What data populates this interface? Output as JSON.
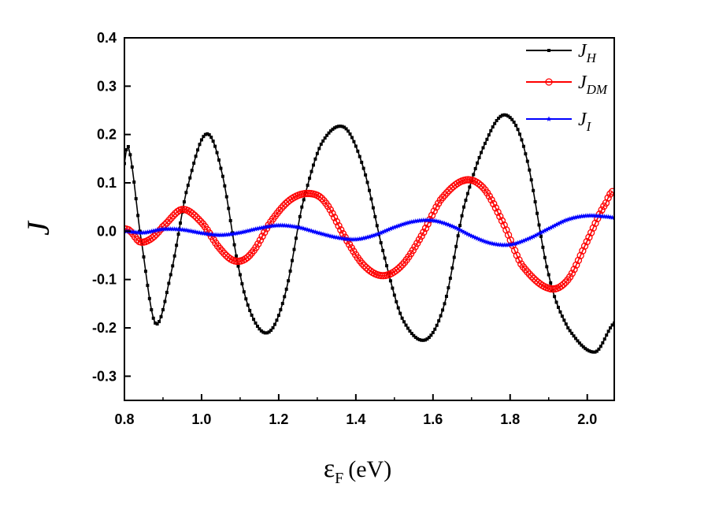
{
  "chart_data": {
    "type": "line",
    "title": "",
    "xlabel": {
      "main": "ε",
      "sub": "F",
      "unit": "(eV)"
    },
    "ylabel": "J",
    "xlim": [
      0.8,
      2.07
    ],
    "ylim": [
      -0.35,
      0.4
    ],
    "x_ticks": [
      0.8,
      1.0,
      1.2,
      1.4,
      1.6,
      1.8,
      2.0
    ],
    "x_tick_labels": [
      "0.8",
      "1.0",
      "1.2",
      "1.4",
      "1.6",
      "1.8",
      "2.0"
    ],
    "y_ticks": [
      -0.3,
      -0.2,
      -0.1,
      0.0,
      0.1,
      0.2,
      0.3,
      0.4
    ],
    "y_tick_labels": [
      "-0.3",
      "-0.2",
      "-0.1",
      "0.0",
      "0.1",
      "0.2",
      "0.3",
      "0.4"
    ],
    "grid": false,
    "legend_position": "top-right",
    "series": [
      {
        "name": "J_H",
        "legend": {
          "base": "J",
          "sub": "H"
        },
        "color": "#000000",
        "marker": "square",
        "x": [
          0.8,
          0.81,
          0.84,
          0.88,
          0.92,
          0.96,
          1.01,
          1.05,
          1.1,
          1.14,
          1.18,
          1.22,
          1.26,
          1.31,
          1.37,
          1.42,
          1.47,
          1.52,
          1.58,
          1.63,
          1.68,
          1.74,
          1.79,
          1.84,
          1.9,
          1.95,
          2.02,
          2.07
        ],
        "values": [
          0.14,
          0.175,
          0.0,
          -0.19,
          -0.09,
          0.08,
          0.2,
          0.13,
          -0.09,
          -0.19,
          -0.205,
          -0.12,
          0.05,
          0.18,
          0.215,
          0.13,
          -0.04,
          -0.18,
          -0.225,
          -0.15,
          0.05,
          0.19,
          0.24,
          0.16,
          -0.09,
          -0.2,
          -0.25,
          -0.19
        ]
      },
      {
        "name": "J_DM",
        "legend": {
          "base": "J",
          "sub": "DM"
        },
        "color": "#ff0000",
        "marker": "circle",
        "x": [
          0.8,
          0.815,
          0.84,
          0.87,
          0.9,
          0.95,
          1.0,
          1.05,
          1.09,
          1.13,
          1.18,
          1.23,
          1.28,
          1.32,
          1.37,
          1.42,
          1.47,
          1.52,
          1.57,
          1.62,
          1.68,
          1.73,
          1.78,
          1.83,
          1.9,
          1.95,
          2.0,
          2.05,
          2.07
        ],
        "values": [
          0.005,
          0.0,
          -0.022,
          -0.015,
          0.01,
          0.045,
          0.018,
          -0.038,
          -0.062,
          -0.045,
          0.02,
          0.065,
          0.078,
          0.06,
          -0.01,
          -0.07,
          -0.092,
          -0.07,
          -0.01,
          0.065,
          0.105,
          0.09,
          0.02,
          -0.07,
          -0.118,
          -0.1,
          -0.02,
          0.06,
          0.085
        ]
      },
      {
        "name": "J_I",
        "legend": {
          "base": "J",
          "sub": "I"
        },
        "color": "#0000ff",
        "marker": "star",
        "x": [
          0.8,
          0.85,
          0.9,
          0.95,
          1.0,
          1.05,
          1.1,
          1.15,
          1.2,
          1.25,
          1.3,
          1.35,
          1.4,
          1.45,
          1.5,
          1.55,
          1.6,
          1.65,
          1.7,
          1.75,
          1.8,
          1.85,
          1.9,
          1.95,
          2.0,
          2.05,
          2.07
        ],
        "values": [
          0.0,
          -0.003,
          0.004,
          0.003,
          -0.004,
          -0.008,
          -0.003,
          0.006,
          0.012,
          0.008,
          -0.003,
          -0.013,
          -0.017,
          -0.008,
          0.008,
          0.02,
          0.022,
          0.01,
          -0.01,
          -0.025,
          -0.028,
          -0.015,
          0.005,
          0.024,
          0.032,
          0.03,
          0.028
        ]
      }
    ]
  }
}
